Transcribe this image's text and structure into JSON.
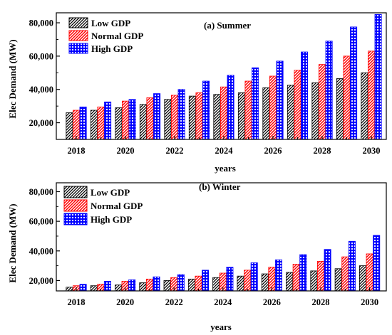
{
  "chart_data": [
    {
      "type": "bar",
      "title": "(a) Summer",
      "xlabel": "years",
      "ylabel": "Elec Demand (MW)",
      "ylim": [
        10000,
        86000
      ],
      "yticks": [
        20000,
        40000,
        60000,
        80000
      ],
      "ytick_labels": [
        "20,000",
        "40,000",
        "60,000",
        "80,000"
      ],
      "categories": [
        2018,
        2019,
        2020,
        2021,
        2022,
        2023,
        2024,
        2025,
        2026,
        2027,
        2028,
        2029,
        2030
      ],
      "xtick_labels": [
        "2018",
        "2020",
        "2022",
        "2024",
        "2026",
        "2028",
        "2030"
      ],
      "legend_position": "top-left",
      "series": [
        {
          "name": "Low GDP",
          "color": "#000000",
          "pattern": "diagonal",
          "values": [
            26000,
            27500,
            29000,
            31000,
            34000,
            36000,
            37000,
            38000,
            41000,
            42500,
            44000,
            46500,
            50000
          ]
        },
        {
          "name": "Normal GDP",
          "color": "#ff0000",
          "pattern": "diagonal",
          "values": [
            27500,
            29500,
            33000,
            35000,
            36500,
            38000,
            41500,
            45000,
            48000,
            51500,
            55000,
            60000,
            63000
          ]
        },
        {
          "name": "High GDP",
          "color": "#0000ff",
          "pattern": "dots",
          "values": [
            29500,
            32500,
            34000,
            37500,
            40000,
            45000,
            48500,
            53000,
            57000,
            62500,
            69000,
            77500,
            85000
          ]
        }
      ]
    },
    {
      "type": "bar",
      "title": "(b) Winter",
      "xlabel": "years",
      "ylabel": "Elec Demand (MW)",
      "ylim": [
        13000,
        86000
      ],
      "yticks": [
        20000,
        40000,
        60000,
        80000
      ],
      "ytick_labels": [
        "20,000",
        "40,000",
        "60,000",
        "80,000"
      ],
      "categories": [
        2018,
        2019,
        2020,
        2021,
        2022,
        2023,
        2024,
        2025,
        2026,
        2027,
        2028,
        2029,
        2030
      ],
      "xtick_labels": [
        "2018",
        "2020",
        "2022",
        "2024",
        "2026",
        "2028",
        "2030"
      ],
      "legend_position": "top-left",
      "series": [
        {
          "name": "Low GDP",
          "color": "#000000",
          "pattern": "diagonal",
          "values": [
            15500,
            16500,
            17000,
            18500,
            20000,
            21000,
            22000,
            23000,
            24500,
            25500,
            26500,
            28000,
            30000
          ]
        },
        {
          "name": "Normal GDP",
          "color": "#ff0000",
          "pattern": "diagonal",
          "values": [
            16500,
            17500,
            19500,
            21000,
            22000,
            23000,
            25000,
            27000,
            29000,
            31000,
            33000,
            36000,
            38000
          ]
        },
        {
          "name": "High GDP",
          "color": "#0000ff",
          "pattern": "dots",
          "values": [
            17500,
            19500,
            20500,
            22500,
            24000,
            27000,
            29000,
            32000,
            34000,
            37500,
            41000,
            46500,
            50500
          ]
        }
      ]
    }
  ]
}
